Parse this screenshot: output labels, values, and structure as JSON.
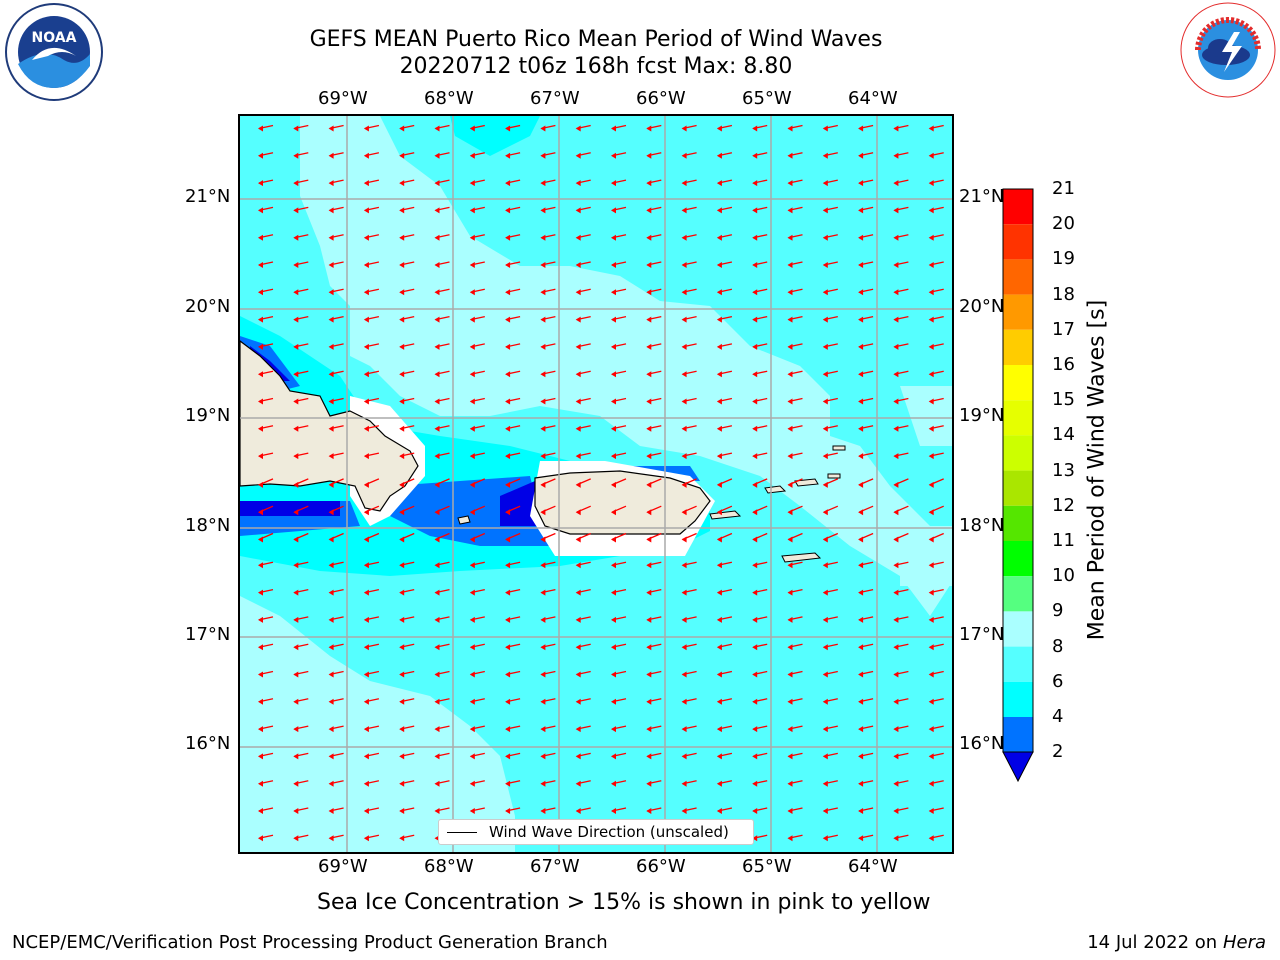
{
  "header": {
    "title_line1": "GEFS MEAN Puerto Rico Mean Period of Wind Waves",
    "title_line2": "20220712 t06z 168h fcst   Max: 8.80"
  },
  "axes": {
    "lon_labels": [
      "69°W",
      "68°W",
      "67°W",
      "66°W",
      "65°W",
      "64°W"
    ],
    "lat_labels": [
      "21°N",
      "20°N",
      "19°N",
      "18°N",
      "17°N",
      "16°N"
    ]
  },
  "legend": {
    "label": "Wind Wave Direction (unscaled)"
  },
  "colorbar": {
    "label": "Mean Period of Wind Waves [s]",
    "ticks": [
      "2",
      "4",
      "6",
      "8",
      "9",
      "10",
      "11",
      "12",
      "13",
      "14",
      "15",
      "16",
      "17",
      "18",
      "19",
      "20",
      "21"
    ],
    "colors": [
      "#0000e6",
      "#0073ff",
      "#00ffff",
      "#55ffff",
      "#aaffff",
      "#55ff80",
      "#00ff00",
      "#55e600",
      "#aae600",
      "#ccff00",
      "#e6ff00",
      "#ffff00",
      "#ffcc00",
      "#ff9900",
      "#ff6600",
      "#ff3300",
      "#ff0000"
    ],
    "under_color": "#0000e6"
  },
  "map_colors": {
    "ocean_6_8": "#55ffff",
    "ocean_8_9": "#aaffff",
    "ocean_4_6": "#00ffff",
    "ocean_2_4": "#0073ff",
    "ocean_lt2": "#0000e6",
    "land": "#efebdc",
    "arrow": "#ff0000",
    "grid": "#aaaaaa"
  },
  "notes": {
    "sea_ice": "Sea Ice Concentration > 15% is shown in pink to yellow"
  },
  "footer": {
    "left": "NCEP/EMC/Verification Post Processing Product Generation Branch",
    "right_date": "14 Jul 2022 on ",
    "right_host": "Hera"
  },
  "logos": {
    "noaa_text": "NOAA",
    "nws_text": "NATIONAL WEATHER SERVICE"
  }
}
